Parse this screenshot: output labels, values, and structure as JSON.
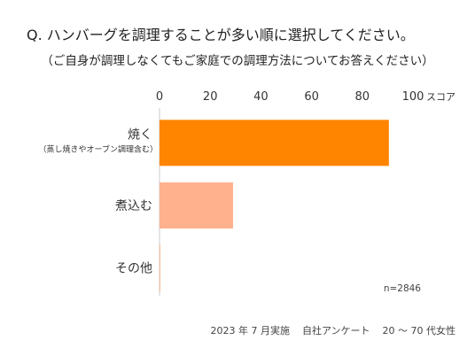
{
  "question": "Q. ハンバーグを調理することが多い順に選択してください。",
  "subtitle": "（ご自身が調理しなくてもご家庭での調理方法についてお答えください）",
  "chart_data": {
    "type": "bar",
    "orientation": "horizontal",
    "categories": [
      "焼く",
      "煮込む",
      "その他"
    ],
    "category_notes": [
      "（蒸し焼きやオーブン調理含む）",
      "",
      ""
    ],
    "values": [
      90.5,
      29,
      0.3
    ],
    "colors": [
      "#ff8400",
      "#ffb08c",
      "#ffb08c"
    ],
    "xlim": [
      0,
      100
    ],
    "ticks": [
      0,
      20,
      40,
      60,
      80,
      100
    ],
    "xlabel": "スコア",
    "grid": false,
    "annotation": "n=2846"
  },
  "footer": {
    "date": "2023 年 7 月実施",
    "source": "自社アンケート",
    "demographic": "20 〜 70 代女性"
  }
}
